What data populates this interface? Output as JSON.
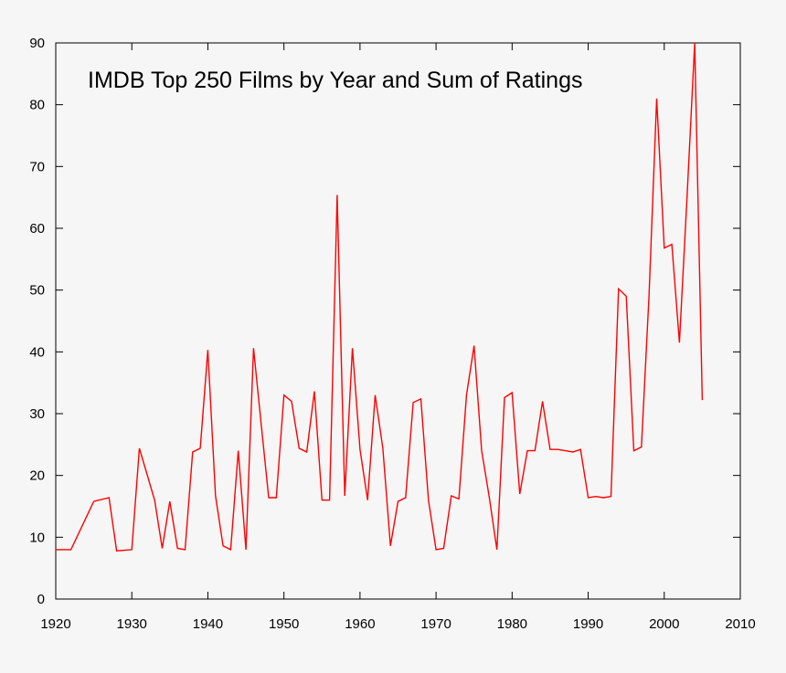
{
  "chart_data": {
    "type": "line",
    "title": "IMDB Top 250 Films by Year and Sum of Ratings",
    "xlabel": "",
    "ylabel": "",
    "xlim": [
      1920,
      2010
    ],
    "ylim": [
      0,
      90
    ],
    "xticks": [
      1920,
      1930,
      1940,
      1950,
      1960,
      1970,
      1980,
      1990,
      2000,
      2010
    ],
    "yticks": [
      0,
      10,
      20,
      30,
      40,
      50,
      60,
      70,
      80,
      90
    ],
    "grid": false,
    "line_color": "#ff0000",
    "series": [
      {
        "name": "Sum of ratings",
        "x": [
          1920,
          1922,
          1925,
          1927,
          1928,
          1930,
          1931,
          1933,
          1934,
          1935,
          1936,
          1937,
          1938,
          1939,
          1940,
          1941,
          1942,
          1943,
          1944,
          1945,
          1946,
          1947,
          1948,
          1949,
          1950,
          1951,
          1952,
          1953,
          1954,
          1955,
          1956,
          1957,
          1958,
          1959,
          1960,
          1961,
          1962,
          1963,
          1964,
          1965,
          1966,
          1967,
          1968,
          1969,
          1970,
          1971,
          1972,
          1973,
          1974,
          1975,
          1976,
          1977,
          1978,
          1979,
          1980,
          1981,
          1982,
          1983,
          1984,
          1985,
          1986,
          1987,
          1988,
          1989,
          1990,
          1991,
          1992,
          1993,
          1994,
          1995,
          1996,
          1997,
          1998,
          1999,
          2000,
          2001,
          2002,
          2003,
          2004,
          2005
        ],
        "values": [
          8,
          8,
          15.8,
          16.4,
          7.8,
          8,
          24.4,
          16,
          8.2,
          15.8,
          8.2,
          8,
          23.8,
          24.4,
          40.3,
          16.7,
          8.6,
          8,
          24,
          8,
          40.6,
          28.4,
          16.4,
          16.4,
          33,
          32,
          24.4,
          23.8,
          33.6,
          16,
          16,
          65.4,
          16.7,
          40.6,
          24.2,
          16,
          33,
          24.4,
          8.6,
          15.8,
          16.4,
          31.8,
          32.4,
          16,
          8,
          8.2,
          16.7,
          16.2,
          33,
          41,
          24,
          16.4,
          8,
          32.6,
          33.4,
          17,
          24,
          24,
          32,
          24.2,
          24.2,
          24,
          23.8,
          24.2,
          16.4,
          16.6,
          16.4,
          16.6,
          50.2,
          49,
          24,
          24.6,
          49,
          81,
          56.8,
          57.4,
          41.5,
          65,
          90,
          32.2
        ]
      }
    ]
  }
}
